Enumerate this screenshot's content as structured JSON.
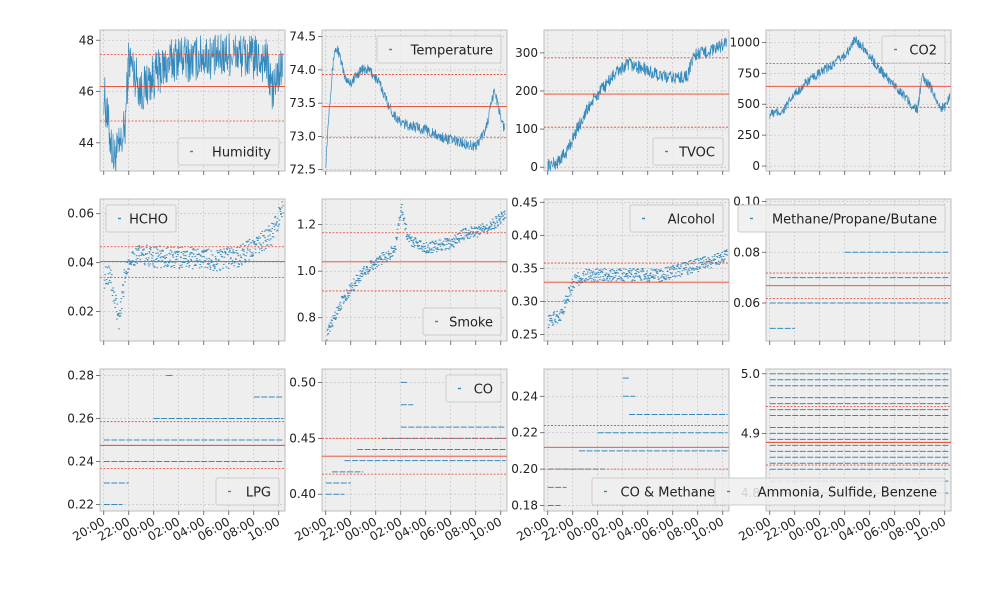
{
  "figure": {
    "background": "#ffffff",
    "panel_bg": "#eeeeee",
    "grid_color": "#bcbcbc",
    "series_color": "#348abd",
    "ref_color": "#e8442c",
    "x_ticks": [
      "20:00",
      "22:00",
      "00:00",
      "02:00",
      "04:00",
      "06:00",
      "08:00",
      "10:00"
    ],
    "x_range_hours": [
      19.7,
      34.5
    ]
  },
  "chart_data": [
    {
      "type": "line",
      "title": "",
      "xlabel": "",
      "ylabel": "",
      "legend": "Humidity",
      "legend_pos": "lower-right",
      "ylim": [
        42.9,
        48.4
      ],
      "y_ticks": [
        44,
        46,
        48
      ],
      "y_tick_labels": [
        "44",
        "46",
        "48"
      ],
      "ref_lines": {
        "mean": 46.2,
        "upper": 47.45,
        "lower": 44.85
      },
      "profile": [
        [
          20.0,
          46.0
        ],
        [
          20.4,
          44.6
        ],
        [
          20.8,
          43.4
        ],
        [
          21.3,
          43.8
        ],
        [
          21.7,
          44.6
        ],
        [
          22.0,
          47.3
        ],
        [
          22.5,
          46.7
        ],
        [
          23.0,
          46.0
        ],
        [
          23.5,
          46.3
        ],
        [
          24.0,
          46.6
        ],
        [
          25.0,
          47.0
        ],
        [
          26.0,
          47.4
        ],
        [
          27.0,
          47.2
        ],
        [
          28.0,
          47.4
        ],
        [
          29.0,
          47.3
        ],
        [
          30.0,
          47.5
        ],
        [
          31.0,
          47.4
        ],
        [
          32.0,
          47.3
        ],
        [
          33.0,
          47.2
        ],
        [
          33.5,
          46.0
        ],
        [
          34.0,
          46.7
        ],
        [
          34.3,
          47.0
        ]
      ],
      "noise": 0.9
    },
    {
      "type": "line",
      "title": "",
      "xlabel": "",
      "ylabel": "",
      "legend": "Temperature",
      "legend_pos": "upper-right",
      "ylim": [
        72.48,
        74.6
      ],
      "y_ticks": [
        72.5,
        73.0,
        73.5,
        74.0,
        74.5
      ],
      "y_tick_labels": [
        "72.5",
        "73.0",
        "73.5",
        "74.0",
        "74.5"
      ],
      "ref_lines": {
        "mean": 73.45,
        "upper": 73.93,
        "lower": 72.98
      },
      "profile": [
        [
          20.0,
          72.6
        ],
        [
          20.3,
          73.5
        ],
        [
          20.7,
          74.3
        ],
        [
          21.0,
          74.3
        ],
        [
          21.5,
          73.9
        ],
        [
          22.0,
          73.8
        ],
        [
          22.8,
          74.0
        ],
        [
          23.5,
          74.0
        ],
        [
          24.3,
          73.8
        ],
        [
          25.2,
          73.4
        ],
        [
          26.0,
          73.2
        ],
        [
          27.0,
          73.15
        ],
        [
          28.0,
          73.1
        ],
        [
          29.0,
          73.0
        ],
        [
          30.0,
          72.95
        ],
        [
          31.0,
          72.9
        ],
        [
          32.0,
          72.85
        ],
        [
          32.8,
          73.1
        ],
        [
          33.5,
          73.7
        ],
        [
          34.0,
          73.3
        ],
        [
          34.3,
          73.1
        ]
      ],
      "noise": 0.08
    },
    {
      "type": "line",
      "title": "",
      "xlabel": "",
      "ylabel": "",
      "legend": "TVOC",
      "legend_pos": "lower-right",
      "ylim": [
        -10,
        360
      ],
      "y_ticks": [
        0,
        100,
        200,
        300
      ],
      "y_tick_labels": [
        "0",
        "100",
        "200",
        "300"
      ],
      "ref_lines": {
        "mean": 192,
        "upper": 287,
        "lower": 105
      },
      "profile": [
        [
          20.0,
          5
        ],
        [
          20.7,
          10
        ],
        [
          21.5,
          40
        ],
        [
          22.5,
          110
        ],
        [
          23.5,
          170
        ],
        [
          24.5,
          210
        ],
        [
          25.5,
          250
        ],
        [
          26.5,
          270
        ],
        [
          27.5,
          260
        ],
        [
          28.5,
          245
        ],
        [
          29.5,
          235
        ],
        [
          30.5,
          235
        ],
        [
          31.2,
          240
        ],
        [
          31.7,
          295
        ],
        [
          32.5,
          300
        ],
        [
          33.5,
          310
        ],
        [
          34.3,
          330
        ]
      ],
      "noise": 18
    },
    {
      "type": "line",
      "title": "",
      "xlabel": "",
      "ylabel": "",
      "legend": "CO2",
      "legend_pos": "upper-right",
      "ylim": [
        -40,
        1100
      ],
      "y_ticks": [
        0,
        250,
        500,
        750,
        1000
      ],
      "y_tick_labels": [
        "0",
        "250",
        "500",
        "750",
        "1000"
      ],
      "ref_lines": {
        "mean": 645,
        "upper": 830,
        "lower": 475
      },
      "profile": [
        [
          20.0,
          420
        ],
        [
          21.0,
          440
        ],
        [
          22.0,
          580
        ],
        [
          23.0,
          680
        ],
        [
          24.0,
          750
        ],
        [
          25.0,
          820
        ],
        [
          25.8,
          880
        ],
        [
          26.3,
          930
        ],
        [
          26.8,
          1020
        ],
        [
          27.5,
          960
        ],
        [
          28.5,
          820
        ],
        [
          29.5,
          700
        ],
        [
          30.5,
          600
        ],
        [
          31.3,
          500
        ],
        [
          31.8,
          450
        ],
        [
          32.2,
          720
        ],
        [
          33.0,
          620
        ],
        [
          33.6,
          470
        ],
        [
          34.0,
          480
        ],
        [
          34.4,
          560
        ]
      ],
      "noise": 40
    },
    {
      "type": "scatter",
      "title": "",
      "xlabel": "",
      "ylabel": "",
      "legend": "HCHO",
      "legend_pos": "upper-left",
      "ylim": [
        0.008,
        0.066
      ],
      "y_ticks": [
        0.02,
        0.04,
        0.06
      ],
      "y_tick_labels": [
        "0.02",
        "0.04",
        "0.06"
      ],
      "ref_lines": {
        "mean": 0.0405,
        "upper": 0.0465,
        "lower": 0.034
      },
      "profile": [
        [
          20.0,
          0.034
        ],
        [
          20.4,
          0.036
        ],
        [
          20.8,
          0.025
        ],
        [
          21.2,
          0.015
        ],
        [
          21.6,
          0.034
        ],
        [
          22.0,
          0.042
        ],
        [
          23.0,
          0.043
        ],
        [
          25.0,
          0.042
        ],
        [
          27.0,
          0.042
        ],
        [
          29.0,
          0.041
        ],
        [
          31.0,
          0.043
        ],
        [
          32.5,
          0.048
        ],
        [
          33.5,
          0.052
        ],
        [
          34.3,
          0.064
        ]
      ],
      "noise": 0.0045,
      "levels": true
    },
    {
      "type": "scatter",
      "title": "",
      "xlabel": "",
      "ylabel": "",
      "legend": "Smoke",
      "legend_pos": "lower-right",
      "ylim": [
        0.7,
        1.31
      ],
      "y_ticks": [
        0.8,
        1.0,
        1.2
      ],
      "y_tick_labels": [
        "0.8",
        "1.0",
        "1.2"
      ],
      "ref_lines": {
        "mean": 1.04,
        "upper": 1.165,
        "lower": 0.915
      },
      "profile": [
        [
          20.0,
          0.72
        ],
        [
          21.0,
          0.85
        ],
        [
          22.0,
          0.93
        ],
        [
          23.0,
          1.0
        ],
        [
          24.0,
          1.04
        ],
        [
          25.0,
          1.07
        ],
        [
          25.5,
          1.1
        ],
        [
          26.0,
          1.28
        ],
        [
          26.5,
          1.14
        ],
        [
          28.0,
          1.1
        ],
        [
          30.0,
          1.12
        ],
        [
          31.0,
          1.16
        ],
        [
          32.0,
          1.17
        ],
        [
          33.0,
          1.19
        ],
        [
          34.3,
          1.24
        ]
      ],
      "noise": 0.025,
      "levels": true
    },
    {
      "type": "scatter",
      "title": "",
      "xlabel": "",
      "ylabel": "",
      "legend": "Alcohol",
      "legend_pos": "upper-right",
      "ylim": [
        0.24,
        0.455
      ],
      "y_ticks": [
        0.25,
        0.3,
        0.35,
        0.4,
        0.45
      ],
      "y_tick_labels": [
        "0.25",
        "0.30",
        "0.35",
        "0.40",
        "0.45"
      ],
      "ref_lines": {
        "mean": 0.329,
        "upper": 0.358,
        "lower": 0.3
      },
      "profile": [
        [
          20.0,
          0.27
        ],
        [
          21.0,
          0.28
        ],
        [
          22.0,
          0.33
        ],
        [
          23.0,
          0.34
        ],
        [
          26.0,
          0.34
        ],
        [
          29.0,
          0.34
        ],
        [
          31.0,
          0.35
        ],
        [
          33.0,
          0.36
        ],
        [
          34.3,
          0.37
        ]
      ],
      "noise": 0.01,
      "levels": true
    },
    {
      "type": "scatter",
      "title": "",
      "xlabel": "",
      "ylabel": "",
      "legend": "Methane/Propane/Butane",
      "legend_pos": "upper-right",
      "ylim": [
        0.045,
        0.101
      ],
      "y_ticks": [
        0.06,
        0.08,
        0.1
      ],
      "y_tick_labels": [
        "0.06",
        "0.08",
        "0.10"
      ],
      "ref_lines": {
        "mean": 0.0668,
        "upper": 0.0718,
        "lower": 0.0618
      },
      "hlines": [
        {
          "y": 0.08,
          "from": 26.0,
          "to": 34.4
        },
        {
          "y": 0.07,
          "from": 20.0,
          "to": 34.4
        },
        {
          "y": 0.06,
          "from": 20.0,
          "to": 34.4
        },
        {
          "y": 0.05,
          "from": 20.0,
          "to": 22.0
        }
      ]
    },
    {
      "type": "scatter",
      "title": "",
      "xlabel": "",
      "ylabel": "",
      "legend": "LPG",
      "legend_pos": "lower-right",
      "ylim": [
        0.217,
        0.283
      ],
      "y_ticks": [
        0.22,
        0.24,
        0.26,
        0.28
      ],
      "y_tick_labels": [
        "0.22",
        "0.24",
        "0.26",
        "0.28"
      ],
      "ref_lines": {
        "mean": 0.2475,
        "upper": 0.2585,
        "lower": 0.2368
      },
      "hlines": [
        {
          "y": 0.28,
          "from": 25.0,
          "to": 25.6
        },
        {
          "y": 0.27,
          "from": 32.0,
          "to": 34.3
        },
        {
          "y": 0.26,
          "from": 24.0,
          "to": 34.4
        },
        {
          "y": 0.25,
          "from": 20.0,
          "to": 34.4
        },
        {
          "y": 0.24,
          "from": 20.0,
          "to": 34.4
        },
        {
          "y": 0.23,
          "from": 20.0,
          "to": 22.0
        },
        {
          "y": 0.22,
          "from": 20.0,
          "to": 21.5
        }
      ]
    },
    {
      "type": "scatter",
      "title": "",
      "xlabel": "",
      "ylabel": "",
      "legend": "CO",
      "legend_pos": "upper-right",
      "ylim": [
        0.385,
        0.512
      ],
      "y_ticks": [
        0.4,
        0.45,
        0.5
      ],
      "y_tick_labels": [
        "0.40",
        "0.45",
        "0.50"
      ],
      "ref_lines": {
        "mean": 0.434,
        "upper": 0.45,
        "lower": 0.418
      },
      "hlines": [
        {
          "y": 0.5,
          "from": 26.0,
          "to": 26.6
        },
        {
          "y": 0.48,
          "from": 26.0,
          "to": 27.0
        },
        {
          "y": 0.46,
          "from": 26.0,
          "to": 34.4
        },
        {
          "y": 0.45,
          "from": 24.5,
          "to": 34.4
        },
        {
          "y": 0.44,
          "from": 22.5,
          "to": 34.4
        },
        {
          "y": 0.43,
          "from": 21.5,
          "to": 34.4
        },
        {
          "y": 0.42,
          "from": 20.5,
          "to": 23.0
        },
        {
          "y": 0.41,
          "from": 20.0,
          "to": 22.0
        },
        {
          "y": 0.4,
          "from": 20.0,
          "to": 21.5
        }
      ]
    },
    {
      "type": "scatter",
      "title": "",
      "xlabel": "",
      "ylabel": "",
      "legend": "CO & Methane",
      "legend_pos": "lower-right",
      "ylim": [
        0.177,
        0.255
      ],
      "y_ticks": [
        0.18,
        0.2,
        0.22,
        0.24
      ],
      "y_tick_labels": [
        "0.18",
        "0.20",
        "0.22",
        "0.24"
      ],
      "ref_lines": {
        "mean": 0.212,
        "upper": 0.224,
        "lower": 0.2
      },
      "hlines": [
        {
          "y": 0.25,
          "from": 26.0,
          "to": 26.5
        },
        {
          "y": 0.24,
          "from": 26.0,
          "to": 27.0
        },
        {
          "y": 0.23,
          "from": 26.5,
          "to": 34.4
        },
        {
          "y": 0.22,
          "from": 24.0,
          "to": 34.4
        },
        {
          "y": 0.21,
          "from": 22.5,
          "to": 34.4
        },
        {
          "y": 0.2,
          "from": 20.0,
          "to": 24.5
        },
        {
          "y": 0.19,
          "from": 20.0,
          "to": 21.5
        },
        {
          "y": 0.18,
          "from": 20.0,
          "to": 21.0
        }
      ]
    },
    {
      "type": "scatter",
      "title": "",
      "xlabel": "",
      "ylabel": "",
      "legend": "Ammonia, Sulfide, Benzene",
      "legend_pos": "lower-right",
      "ylim": [
        4.77,
        5.008
      ],
      "y_ticks": [
        4.8,
        4.9,
        5.0
      ],
      "y_tick_labels": [
        "4.8",
        "4.9",
        "5.0"
      ],
      "ref_lines": {
        "mean": 4.885,
        "upper": 4.945,
        "lower": 4.847
      },
      "hlines": [
        {
          "y": 5.0,
          "from": 20.0,
          "to": 34.4
        },
        {
          "y": 4.99,
          "from": 20.0,
          "to": 34.4
        },
        {
          "y": 4.98,
          "from": 20.0,
          "to": 34.4
        },
        {
          "y": 4.96,
          "from": 20.0,
          "to": 34.4
        },
        {
          "y": 4.95,
          "from": 20.0,
          "to": 34.4
        },
        {
          "y": 4.94,
          "from": 20.0,
          "to": 34.4
        },
        {
          "y": 4.93,
          "from": 20.0,
          "to": 34.4
        },
        {
          "y": 4.91,
          "from": 20.0,
          "to": 34.4
        },
        {
          "y": 4.9,
          "from": 20.0,
          "to": 34.4
        },
        {
          "y": 4.89,
          "from": 20.0,
          "to": 34.4
        },
        {
          "y": 4.88,
          "from": 20.0,
          "to": 34.4
        },
        {
          "y": 4.87,
          "from": 20.0,
          "to": 34.4
        },
        {
          "y": 4.86,
          "from": 20.0,
          "to": 34.4
        },
        {
          "y": 4.85,
          "from": 20.0,
          "to": 34.4
        },
        {
          "y": 4.84,
          "from": 20.0,
          "to": 34.4
        },
        {
          "y": 4.82,
          "from": 20.0,
          "to": 34.4
        },
        {
          "y": 4.8,
          "from": 20.0,
          "to": 34.4
        }
      ]
    }
  ]
}
